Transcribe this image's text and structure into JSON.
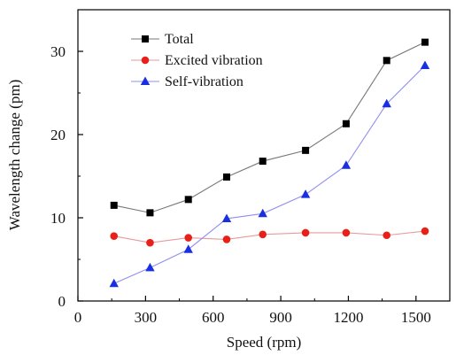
{
  "chart_data": {
    "type": "line",
    "title": "",
    "xlabel": "Speed (rpm)",
    "ylabel": "Wavelength change (pm)",
    "xlim": [
      0,
      1650
    ],
    "ylim": [
      0,
      35
    ],
    "xticks": [
      0,
      300,
      600,
      900,
      1200,
      1500
    ],
    "yticks": [
      0,
      10,
      20,
      30
    ],
    "xtick_labels": [
      "0",
      "300",
      "600",
      "900",
      "1200",
      "1500"
    ],
    "ytick_labels": [
      "0",
      "10",
      "20",
      "30"
    ],
    "grid": false,
    "legend_position": "top-left",
    "x": [
      160,
      320,
      490,
      660,
      820,
      1010,
      1190,
      1370,
      1540
    ],
    "series": [
      {
        "name": "Total",
        "marker": "square",
        "color": "#000000",
        "line_color": "#777777",
        "values": [
          11.5,
          10.6,
          12.2,
          14.9,
          16.8,
          18.1,
          21.3,
          28.9,
          31.1
        ]
      },
      {
        "name": "Excited vibration",
        "marker": "circle",
        "color": "#e8201a",
        "line_color": "#e89a9a",
        "values": [
          7.8,
          7.0,
          7.6,
          7.4,
          8.0,
          8.2,
          8.2,
          7.9,
          8.4
        ]
      },
      {
        "name": "Self-vibration",
        "marker": "triangle",
        "color": "#1a2fe0",
        "line_color": "#8f8ff0",
        "values": [
          2.1,
          4.0,
          6.2,
          9.9,
          10.5,
          12.8,
          16.3,
          23.7,
          28.3
        ]
      }
    ]
  }
}
